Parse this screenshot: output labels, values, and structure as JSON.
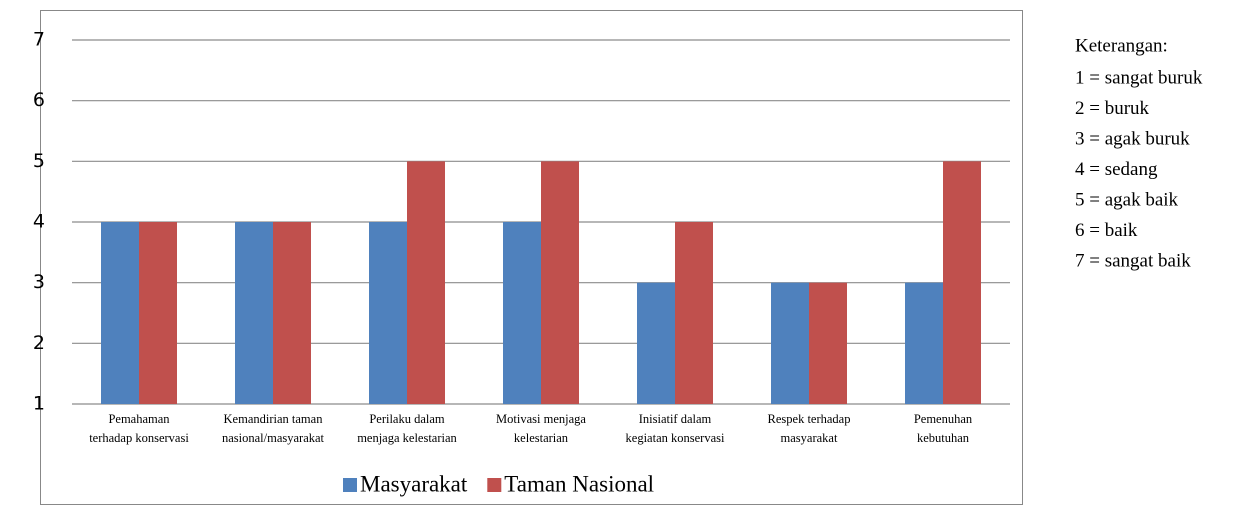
{
  "chart_data": {
    "type": "bar",
    "categories": [
      [
        "Pemahaman",
        "terhadap konservasi"
      ],
      [
        "Kemandirian taman",
        "nasional/masyarakat"
      ],
      [
        "Perilaku dalam",
        "menjaga kelestarian"
      ],
      [
        "Motivasi  menjaga",
        "kelestarian"
      ],
      [
        "Inisiatif dalam",
        "kegiatan konservasi"
      ],
      [
        "Respek terhadap",
        "masyarakat"
      ],
      [
        "Pemenuhan",
        "kebutuhan"
      ]
    ],
    "series": [
      {
        "name": "Masyarakat",
        "color": "#4f81bd",
        "values": [
          4,
          4,
          4,
          4,
          3,
          3,
          3
        ]
      },
      {
        "name": "Taman Nasional",
        "color": "#c0504d",
        "values": [
          4,
          4,
          5,
          5,
          4,
          3,
          5
        ]
      }
    ],
    "ylim": [
      1,
      7
    ],
    "yticks": [
      1,
      2,
      3,
      4,
      5,
      6,
      7
    ],
    "grid": true,
    "legend": "bottom",
    "notes": {
      "title": "Keterangan:",
      "items": [
        "1 = sangat buruk",
        "2 = buruk",
        "3 = agak buruk",
        "4 = sedang",
        "5 = agak baik",
        "6 = baik",
        "7 = sangat baik"
      ]
    }
  }
}
